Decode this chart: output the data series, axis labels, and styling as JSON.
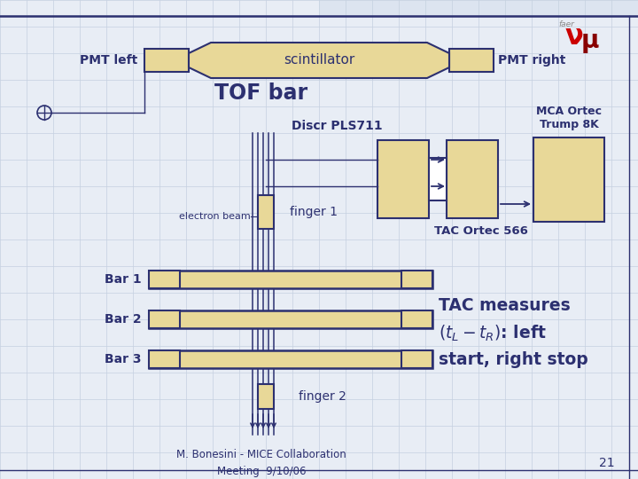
{
  "bg_color": "#e8edf5",
  "bg_color2": "#dce4f0",
  "grid_color": "#c5d0e0",
  "pmt_left_label": "PMT left",
  "pmt_right_label": "PMT right",
  "scintillator_label": "scintillator",
  "tof_bar_label": "TOF bar",
  "discr_label": "Discr PLS711",
  "mca_label": "MCA Ortec\nTrump 8K",
  "tac_label": "TAC Ortec 566",
  "tac_text": "TAC measures\n$(t_L-t_R)$: left\nstart, right stop",
  "electron_beam_label": "electron beam",
  "finger1_label": "finger 1",
  "finger2_label": "finger 2",
  "bar1_label": "Bar 1",
  "bar2_label": "Bar 2",
  "bar3_label": "Bar 3",
  "footer": "M. Bonesini - MICE Collaboration\nMeeting  9/10/06",
  "page_num": "21",
  "tan_fill": "#e8d898",
  "dark_blue": "#2c3070",
  "white": "#ffffff"
}
